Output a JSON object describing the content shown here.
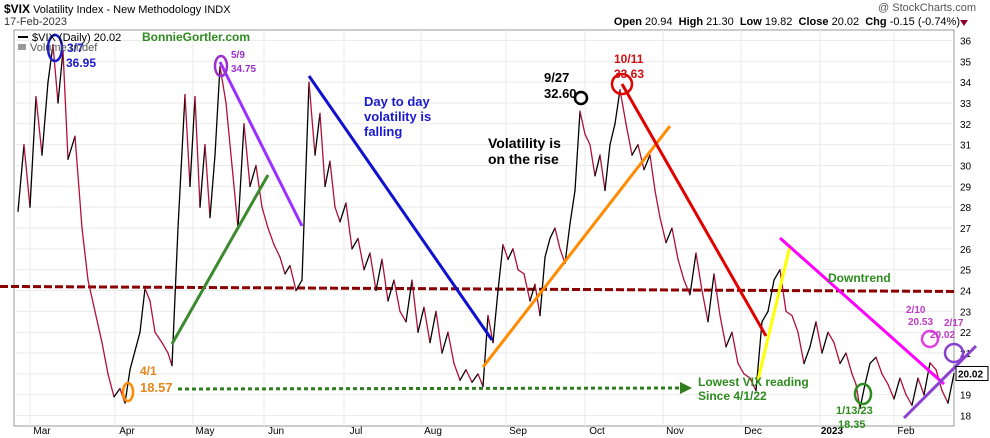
{
  "header": {
    "ticker": "$VIX",
    "name": "Volatility Index - New Methodology",
    "exchange": "INDX",
    "date": "17-Feb-2023",
    "watermark": "@ StockCharts.com",
    "open_label": "Open",
    "open": "20.94",
    "high_label": "High",
    "high": "21.30",
    "low_label": "Low",
    "low": "19.82",
    "close_label": "Close",
    "close": "20.02",
    "chg_label": "Chg",
    "chg": "-0.15 (-0.74%)"
  },
  "legend": {
    "series": "$VIX (Daily) 20.02",
    "volume": "Volume undef",
    "site": "BonnieGortler.com"
  },
  "chart_data": {
    "type": "line",
    "ylim": [
      17.5,
      36.5
    ],
    "yticks": [
      18,
      19,
      20,
      21,
      22,
      23,
      24,
      25,
      26,
      27,
      28,
      29,
      30,
      31,
      32,
      33,
      34,
      35,
      36
    ],
    "months": [
      "Mar",
      "Apr",
      "May",
      "Jun",
      "Jul",
      "Aug",
      "Sep",
      "Oct",
      "Nov",
      "Dec",
      "2023",
      "Feb"
    ],
    "last_value": "20.02",
    "series": [
      {
        "values": [
          {
            "x": 18,
            "y": 27.8
          },
          {
            "x": 24,
            "y": 31.0
          },
          {
            "x": 30,
            "y": 28.0
          },
          {
            "x": 36,
            "y": 33.3
          },
          {
            "x": 42,
            "y": 30.5
          },
          {
            "x": 48,
            "y": 34.0
          },
          {
            "x": 53,
            "y": 35.8
          },
          {
            "x": 58,
            "y": 33.0
          },
          {
            "x": 63,
            "y": 35.5
          },
          {
            "x": 68,
            "y": 30.3
          },
          {
            "x": 75,
            "y": 31.4
          },
          {
            "x": 82,
            "y": 27.0
          },
          {
            "x": 88,
            "y": 24.5
          },
          {
            "x": 95,
            "y": 23.0
          },
          {
            "x": 102,
            "y": 21.5
          },
          {
            "x": 108,
            "y": 20.0
          },
          {
            "x": 114,
            "y": 18.9
          },
          {
            "x": 120,
            "y": 19.3
          },
          {
            "x": 125,
            "y": 18.6
          },
          {
            "x": 130,
            "y": 20.2
          },
          {
            "x": 135,
            "y": 21.1
          },
          {
            "x": 140,
            "y": 22.0
          },
          {
            "x": 145,
            "y": 24.1
          },
          {
            "x": 150,
            "y": 23.5
          },
          {
            "x": 155,
            "y": 22.0
          },
          {
            "x": 162,
            "y": 21.5
          },
          {
            "x": 168,
            "y": 21.0
          },
          {
            "x": 172,
            "y": 20.4
          },
          {
            "x": 178,
            "y": 27.0
          },
          {
            "x": 185,
            "y": 33.4
          },
          {
            "x": 190,
            "y": 29.0
          },
          {
            "x": 195,
            "y": 33.3
          },
          {
            "x": 200,
            "y": 28.0
          },
          {
            "x": 205,
            "y": 31.0
          },
          {
            "x": 210,
            "y": 27.5
          },
          {
            "x": 215,
            "y": 30.5
          },
          {
            "x": 220,
            "y": 34.75
          },
          {
            "x": 226,
            "y": 33.0
          },
          {
            "x": 232,
            "y": 30.0
          },
          {
            "x": 238,
            "y": 27.0
          },
          {
            "x": 244,
            "y": 32.0
          },
          {
            "x": 250,
            "y": 29.0
          },
          {
            "x": 256,
            "y": 30.0
          },
          {
            "x": 262,
            "y": 28.0
          },
          {
            "x": 268,
            "y": 27.0
          },
          {
            "x": 274,
            "y": 26.2
          },
          {
            "x": 280,
            "y": 25.6
          },
          {
            "x": 285,
            "y": 24.8
          },
          {
            "x": 290,
            "y": 25.2
          },
          {
            "x": 296,
            "y": 24.0
          },
          {
            "x": 302,
            "y": 24.5
          },
          {
            "x": 309,
            "y": 34.0
          },
          {
            "x": 315,
            "y": 30.5
          },
          {
            "x": 320,
            "y": 32.5
          },
          {
            "x": 325,
            "y": 29.0
          },
          {
            "x": 330,
            "y": 30.2
          },
          {
            "x": 335,
            "y": 28.0
          },
          {
            "x": 340,
            "y": 27.3
          },
          {
            "x": 346,
            "y": 28.2
          },
          {
            "x": 352,
            "y": 26.0
          },
          {
            "x": 358,
            "y": 26.5
          },
          {
            "x": 364,
            "y": 25.0
          },
          {
            "x": 370,
            "y": 25.8
          },
          {
            "x": 376,
            "y": 24.0
          },
          {
            "x": 382,
            "y": 25.5
          },
          {
            "x": 388,
            "y": 23.5
          },
          {
            "x": 394,
            "y": 24.5
          },
          {
            "x": 400,
            "y": 23.0
          },
          {
            "x": 406,
            "y": 22.5
          },
          {
            "x": 412,
            "y": 24.5
          },
          {
            "x": 418,
            "y": 22.0
          },
          {
            "x": 424,
            "y": 23.2
          },
          {
            "x": 430,
            "y": 21.5
          },
          {
            "x": 436,
            "y": 23.0
          },
          {
            "x": 442,
            "y": 21.0
          },
          {
            "x": 448,
            "y": 22.0
          },
          {
            "x": 454,
            "y": 20.5
          },
          {
            "x": 460,
            "y": 19.7
          },
          {
            "x": 466,
            "y": 20.2
          },
          {
            "x": 472,
            "y": 19.6
          },
          {
            "x": 478,
            "y": 20.0
          },
          {
            "x": 483,
            "y": 19.4
          },
          {
            "x": 488,
            "y": 22.8
          },
          {
            "x": 493,
            "y": 21.5
          },
          {
            "x": 498,
            "y": 24.0
          },
          {
            "x": 503,
            "y": 26.2
          },
          {
            "x": 508,
            "y": 25.5
          },
          {
            "x": 513,
            "y": 26.0
          },
          {
            "x": 518,
            "y": 25.0
          },
          {
            "x": 524,
            "y": 24.8
          },
          {
            "x": 530,
            "y": 23.5
          },
          {
            "x": 535,
            "y": 24.3
          },
          {
            "x": 540,
            "y": 22.8
          },
          {
            "x": 545,
            "y": 25.6
          },
          {
            "x": 550,
            "y": 26.5
          },
          {
            "x": 555,
            "y": 27.0
          },
          {
            "x": 560,
            "y": 26.0
          },
          {
            "x": 565,
            "y": 25.3
          },
          {
            "x": 570,
            "y": 27.2
          },
          {
            "x": 575,
            "y": 28.8
          },
          {
            "x": 580,
            "y": 32.6
          },
          {
            "x": 585,
            "y": 31.5
          },
          {
            "x": 590,
            "y": 31.0
          },
          {
            "x": 595,
            "y": 29.5
          },
          {
            "x": 600,
            "y": 30.5
          },
          {
            "x": 605,
            "y": 28.8
          },
          {
            "x": 610,
            "y": 31.0
          },
          {
            "x": 615,
            "y": 32.0
          },
          {
            "x": 620,
            "y": 33.63
          },
          {
            "x": 626,
            "y": 32.0
          },
          {
            "x": 632,
            "y": 30.5
          },
          {
            "x": 638,
            "y": 31.0
          },
          {
            "x": 644,
            "y": 29.8
          },
          {
            "x": 650,
            "y": 30.5
          },
          {
            "x": 655,
            "y": 28.8
          },
          {
            "x": 660,
            "y": 27.5
          },
          {
            "x": 666,
            "y": 26.3
          },
          {
            "x": 672,
            "y": 27.0
          },
          {
            "x": 678,
            "y": 25.5
          },
          {
            "x": 684,
            "y": 24.5
          },
          {
            "x": 690,
            "y": 23.8
          },
          {
            "x": 696,
            "y": 25.8
          },
          {
            "x": 702,
            "y": 24.0
          },
          {
            "x": 708,
            "y": 22.5
          },
          {
            "x": 714,
            "y": 24.8
          },
          {
            "x": 720,
            "y": 22.8
          },
          {
            "x": 726,
            "y": 21.3
          },
          {
            "x": 732,
            "y": 22.0
          },
          {
            "x": 738,
            "y": 20.5
          },
          {
            "x": 744,
            "y": 20.0
          },
          {
            "x": 750,
            "y": 19.8
          },
          {
            "x": 756,
            "y": 19.2
          },
          {
            "x": 762,
            "y": 22.5
          },
          {
            "x": 768,
            "y": 23.0
          },
          {
            "x": 774,
            "y": 24.5
          },
          {
            "x": 780,
            "y": 25.0
          },
          {
            "x": 786,
            "y": 23.0
          },
          {
            "x": 792,
            "y": 22.8
          },
          {
            "x": 798,
            "y": 22.0
          },
          {
            "x": 804,
            "y": 20.5
          },
          {
            "x": 810,
            "y": 21.3
          },
          {
            "x": 816,
            "y": 22.5
          },
          {
            "x": 822,
            "y": 21.0
          },
          {
            "x": 828,
            "y": 22.0
          },
          {
            "x": 834,
            "y": 21.5
          },
          {
            "x": 840,
            "y": 20.5
          },
          {
            "x": 846,
            "y": 21.0
          },
          {
            "x": 852,
            "y": 20.0
          },
          {
            "x": 856,
            "y": 19.5
          },
          {
            "x": 860,
            "y": 18.35
          },
          {
            "x": 865,
            "y": 19.5
          },
          {
            "x": 870,
            "y": 20.5
          },
          {
            "x": 876,
            "y": 20.8
          },
          {
            "x": 882,
            "y": 20.0
          },
          {
            "x": 888,
            "y": 19.5
          },
          {
            "x": 894,
            "y": 18.8
          },
          {
            "x": 900,
            "y": 19.8
          },
          {
            "x": 906,
            "y": 19.0
          },
          {
            "x": 912,
            "y": 18.5
          },
          {
            "x": 918,
            "y": 19.8
          },
          {
            "x": 924,
            "y": 19.0
          },
          {
            "x": 930,
            "y": 20.53
          },
          {
            "x": 936,
            "y": 20.2
          },
          {
            "x": 942,
            "y": 19.2
          },
          {
            "x": 948,
            "y": 18.6
          },
          {
            "x": 954,
            "y": 20.02
          }
        ]
      }
    ],
    "hline": {
      "y": 24.1,
      "color": "#8b0000"
    },
    "annotations": [
      {
        "text": "3/7",
        "color": "#1a1acd"
      },
      {
        "text": "36.95",
        "color": "#1a1acd"
      },
      {
        "text": "5/9",
        "color": "#9b30d0"
      },
      {
        "text": "34.75",
        "color": "#9b30d0"
      },
      {
        "text": "Day to day",
        "color": "#1a1acd"
      },
      {
        "text": "volatility is",
        "color": "#1a1acd"
      },
      {
        "text": "falling",
        "color": "#1a1acd"
      },
      {
        "text": "9/27",
        "color": "#000000"
      },
      {
        "text": "32.60",
        "color": "#000000"
      },
      {
        "text": "10/11",
        "color": "#d01010"
      },
      {
        "text": "33.63",
        "color": "#d01010"
      },
      {
        "text": "Volatility is",
        "color": "#000000"
      },
      {
        "text": "on the rise",
        "color": "#000000"
      },
      {
        "text": "Downtrend",
        "color": "#2e8b1f"
      },
      {
        "text": "4/1",
        "color": "#e8851a"
      },
      {
        "text": "18.57",
        "color": "#e8851a"
      },
      {
        "text": "Lowest VIX reading",
        "color": "#2e8b1f"
      },
      {
        "text": "Since 4/1/22",
        "color": "#2e8b1f"
      },
      {
        "text": "1/13/23",
        "color": "#2e8b1f"
      },
      {
        "text": "18.35",
        "color": "#2e8b1f"
      },
      {
        "text": "2/10",
        "color": "#c03ac8"
      },
      {
        "text": "20.53",
        "color": "#c03ac8"
      },
      {
        "text": "2/17",
        "color": "#c03ac8"
      },
      {
        "text": "20.02",
        "color": "#c03ac8"
      }
    ]
  }
}
